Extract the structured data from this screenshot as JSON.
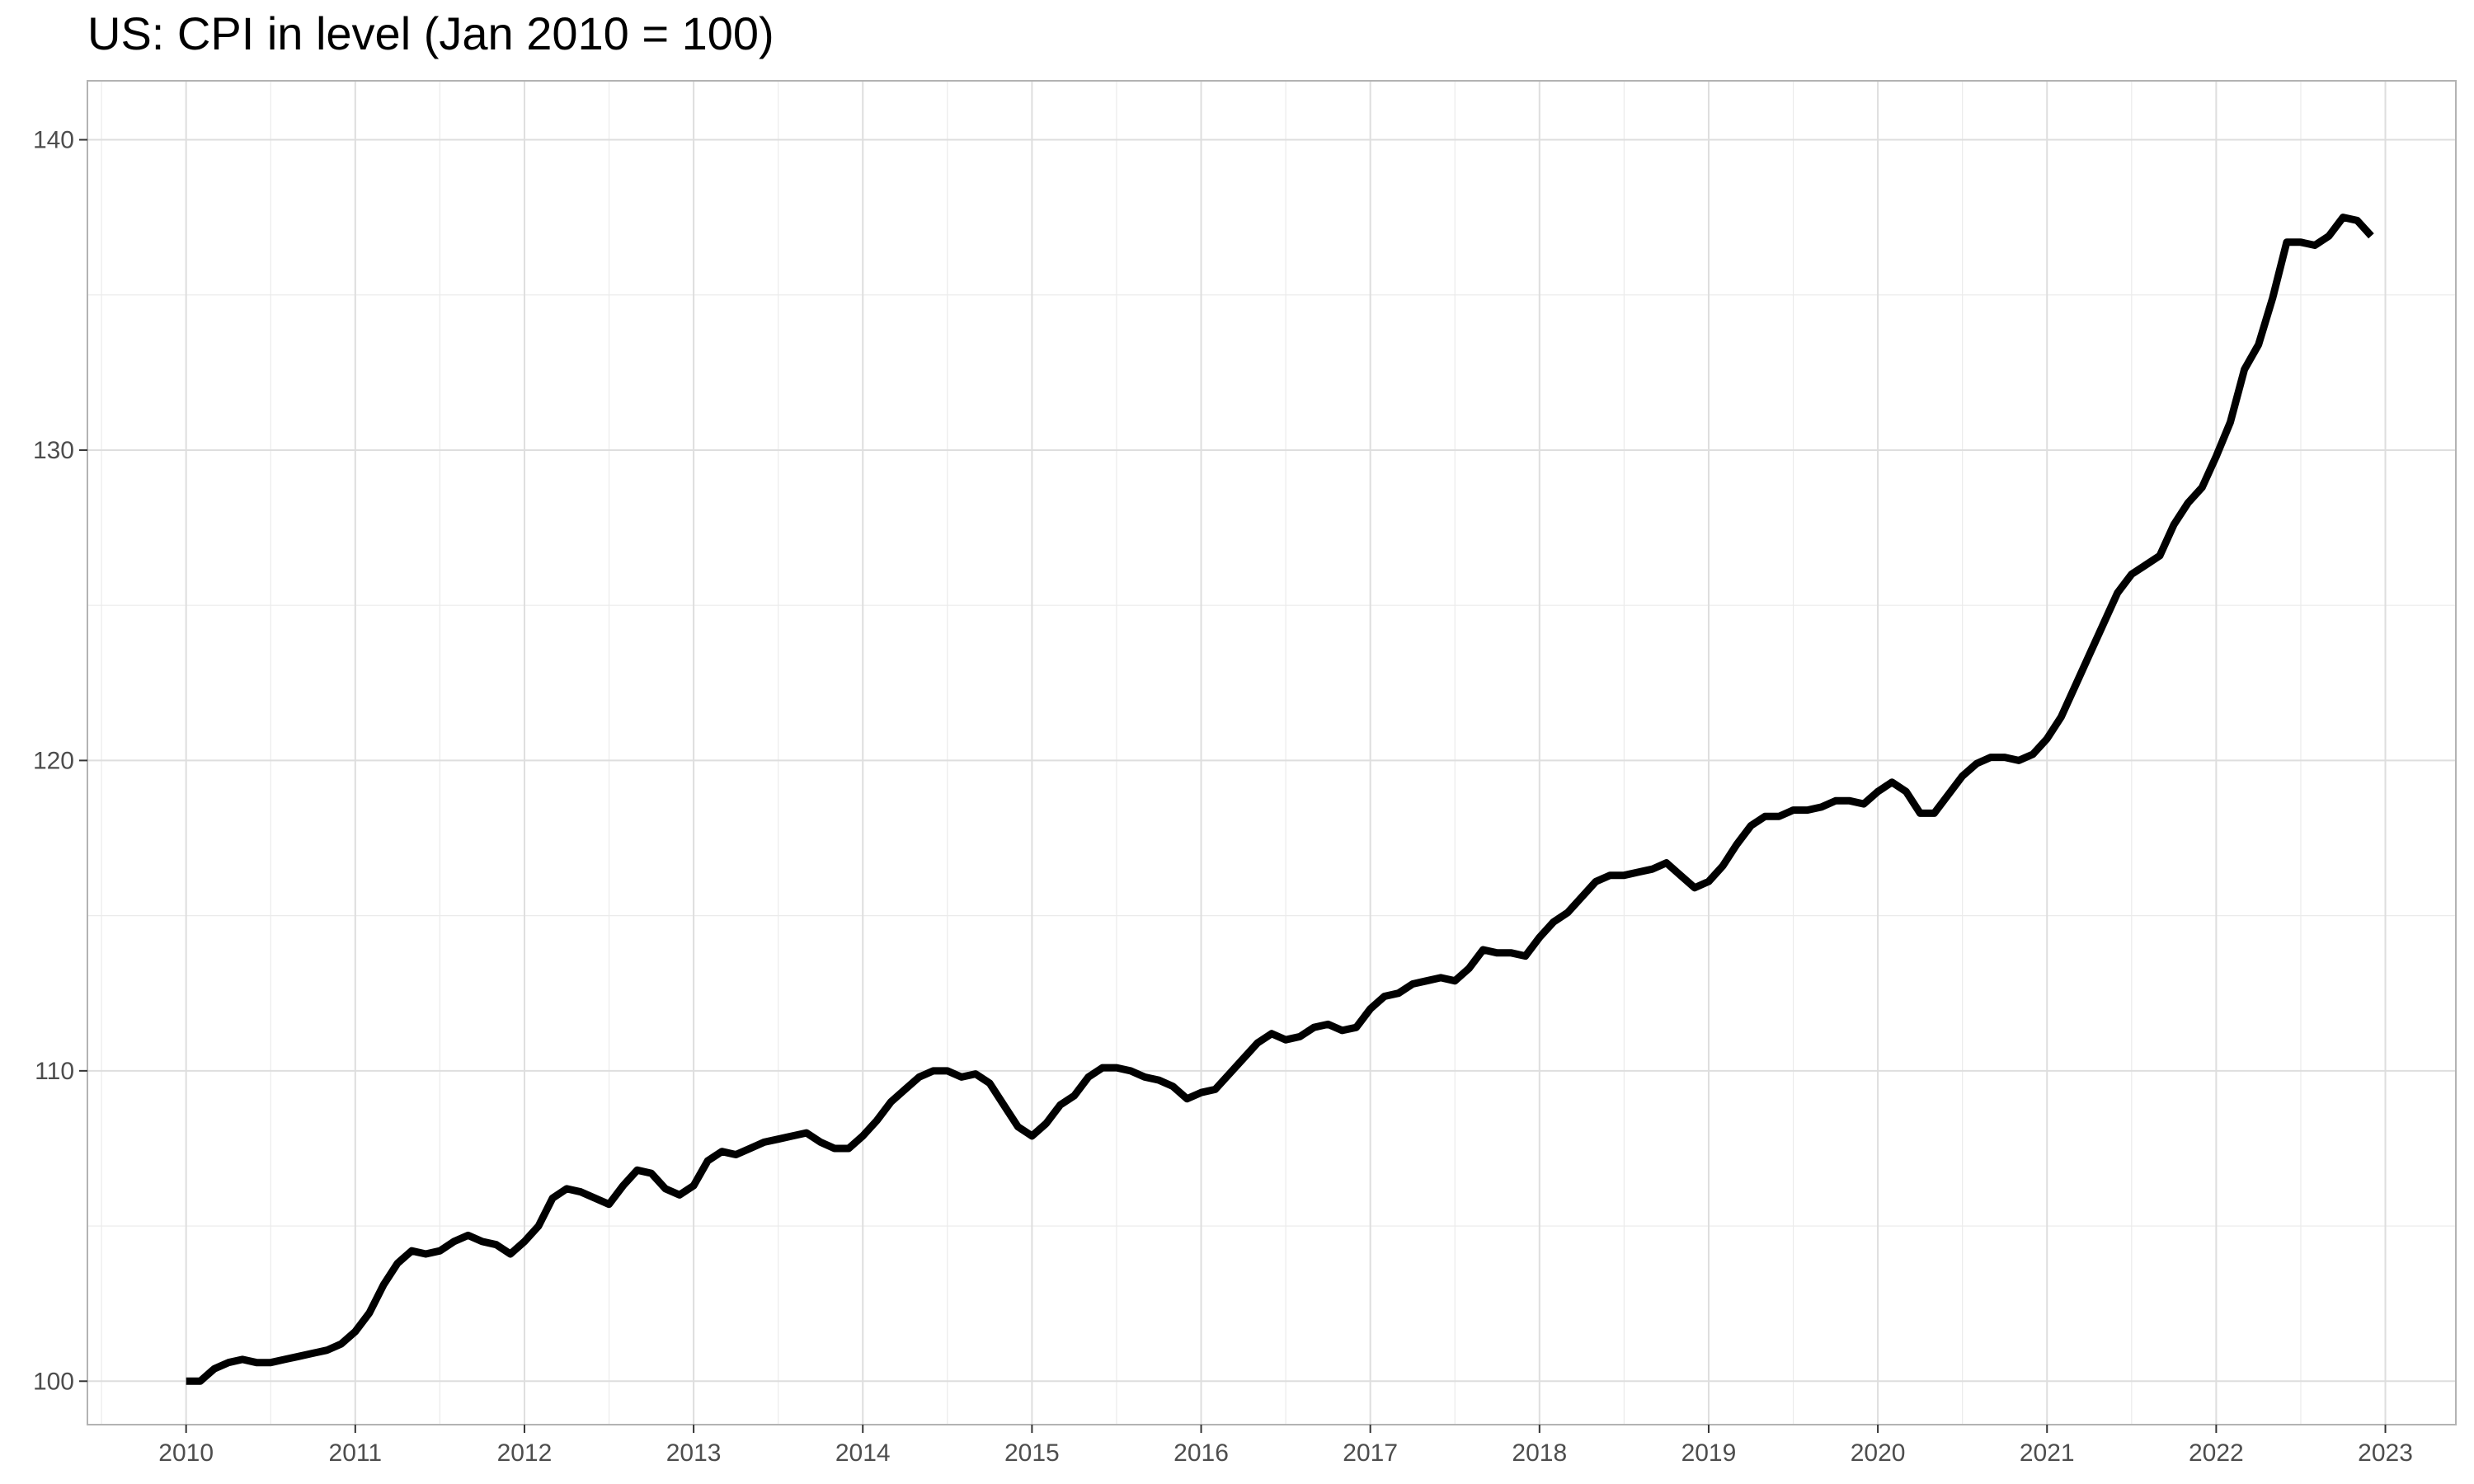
{
  "chart_data": {
    "type": "line",
    "title": "US: CPI in level (Jan 2010 = 100)",
    "xlabel": "",
    "ylabel": "",
    "x_ticks": [
      "2010",
      "2011",
      "2012",
      "2013",
      "2014",
      "2015",
      "2016",
      "2017",
      "2018",
      "2019",
      "2020",
      "2021",
      "2022",
      "2023"
    ],
    "y_ticks": [
      "100",
      "110",
      "120",
      "130",
      "140"
    ],
    "xlim": [
      "2009-06",
      "2023-06"
    ],
    "ylim": [
      98.6,
      141.9
    ],
    "grid": true,
    "legend": "none",
    "line_color": "#000000",
    "series": [
      {
        "x": [
          "2010-01",
          "2010-02",
          "2010-03",
          "2010-04",
          "2010-05",
          "2010-06",
          "2010-07",
          "2010-08",
          "2010-09",
          "2010-10",
          "2010-11",
          "2010-12",
          "2011-01",
          "2011-02",
          "2011-03",
          "2011-04",
          "2011-05",
          "2011-06",
          "2011-07",
          "2011-08",
          "2011-09",
          "2011-10",
          "2011-11",
          "2011-12",
          "2012-01",
          "2012-02",
          "2012-03",
          "2012-04",
          "2012-05",
          "2012-06",
          "2012-07",
          "2012-08",
          "2012-09",
          "2012-10",
          "2012-11",
          "2012-12",
          "2013-01",
          "2013-02",
          "2013-03",
          "2013-04",
          "2013-05",
          "2013-06",
          "2013-07",
          "2013-08",
          "2013-09",
          "2013-10",
          "2013-11",
          "2013-12",
          "2014-01",
          "2014-02",
          "2014-03",
          "2014-04",
          "2014-05",
          "2014-06",
          "2014-07",
          "2014-08",
          "2014-09",
          "2014-10",
          "2014-11",
          "2014-12",
          "2015-01",
          "2015-02",
          "2015-03",
          "2015-04",
          "2015-05",
          "2015-06",
          "2015-07",
          "2015-08",
          "2015-09",
          "2015-10",
          "2015-11",
          "2015-12",
          "2016-01",
          "2016-02",
          "2016-03",
          "2016-04",
          "2016-05",
          "2016-06",
          "2016-07",
          "2016-08",
          "2016-09",
          "2016-10",
          "2016-11",
          "2016-12",
          "2017-01",
          "2017-02",
          "2017-03",
          "2017-04",
          "2017-05",
          "2017-06",
          "2017-07",
          "2017-08",
          "2017-09",
          "2017-10",
          "2017-11",
          "2017-12",
          "2018-01",
          "2018-02",
          "2018-03",
          "2018-04",
          "2018-05",
          "2018-06",
          "2018-07",
          "2018-08",
          "2018-09",
          "2018-10",
          "2018-11",
          "2018-12",
          "2019-01",
          "2019-02",
          "2019-03",
          "2019-04",
          "2019-05",
          "2019-06",
          "2019-07",
          "2019-08",
          "2019-09",
          "2019-10",
          "2019-11",
          "2019-12",
          "2020-01",
          "2020-02",
          "2020-03",
          "2020-04",
          "2020-05",
          "2020-06",
          "2020-07",
          "2020-08",
          "2020-09",
          "2020-10",
          "2020-11",
          "2020-12",
          "2021-01",
          "2021-02",
          "2021-03",
          "2021-04",
          "2021-05",
          "2021-06",
          "2021-07",
          "2021-08",
          "2021-09",
          "2021-10",
          "2021-11",
          "2021-12",
          "2022-01",
          "2022-02",
          "2022-03",
          "2022-04",
          "2022-05",
          "2022-06",
          "2022-07",
          "2022-08",
          "2022-09",
          "2022-10",
          "2022-11",
          "2022-12"
        ],
        "values": [
          100.0,
          100.0,
          100.4,
          100.6,
          100.7,
          100.6,
          100.6,
          100.7,
          100.8,
          100.9,
          101.0,
          101.2,
          101.6,
          102.2,
          103.1,
          103.8,
          104.2,
          104.1,
          104.2,
          104.5,
          104.7,
          104.5,
          104.4,
          104.1,
          104.5,
          105.0,
          105.9,
          106.2,
          106.1,
          105.9,
          105.7,
          106.3,
          106.8,
          106.7,
          106.2,
          106.0,
          106.3,
          107.1,
          107.4,
          107.3,
          107.5,
          107.7,
          107.8,
          107.9,
          108.0,
          107.7,
          107.5,
          107.5,
          107.9,
          108.4,
          109.0,
          109.4,
          109.8,
          110.0,
          110.0,
          109.8,
          109.9,
          109.6,
          108.9,
          108.2,
          107.9,
          108.3,
          108.9,
          109.2,
          109.8,
          110.1,
          110.1,
          110.0,
          109.8,
          109.7,
          109.5,
          109.1,
          109.3,
          109.4,
          109.9,
          110.4,
          110.9,
          111.2,
          111.0,
          111.1,
          111.4,
          111.5,
          111.3,
          111.4,
          112.0,
          112.4,
          112.5,
          112.8,
          112.9,
          113.0,
          112.9,
          113.3,
          113.9,
          113.8,
          113.8,
          113.7,
          114.3,
          114.8,
          115.1,
          115.6,
          116.1,
          116.3,
          116.3,
          116.4,
          116.5,
          116.7,
          116.3,
          115.9,
          116.1,
          116.6,
          117.3,
          117.9,
          118.2,
          118.2,
          118.4,
          118.4,
          118.5,
          118.7,
          118.7,
          118.6,
          119.0,
          119.3,
          119.0,
          118.3,
          118.3,
          118.9,
          119.5,
          119.9,
          120.1,
          120.1,
          120.0,
          120.2,
          120.7,
          121.4,
          122.4,
          123.4,
          124.4,
          125.4,
          126.0,
          126.3,
          126.6,
          127.6,
          128.3,
          128.8,
          129.8,
          130.9,
          132.6,
          133.4,
          134.9,
          136.7,
          136.7,
          136.6,
          136.9,
          137.5,
          137.4,
          136.9
        ]
      }
    ]
  }
}
